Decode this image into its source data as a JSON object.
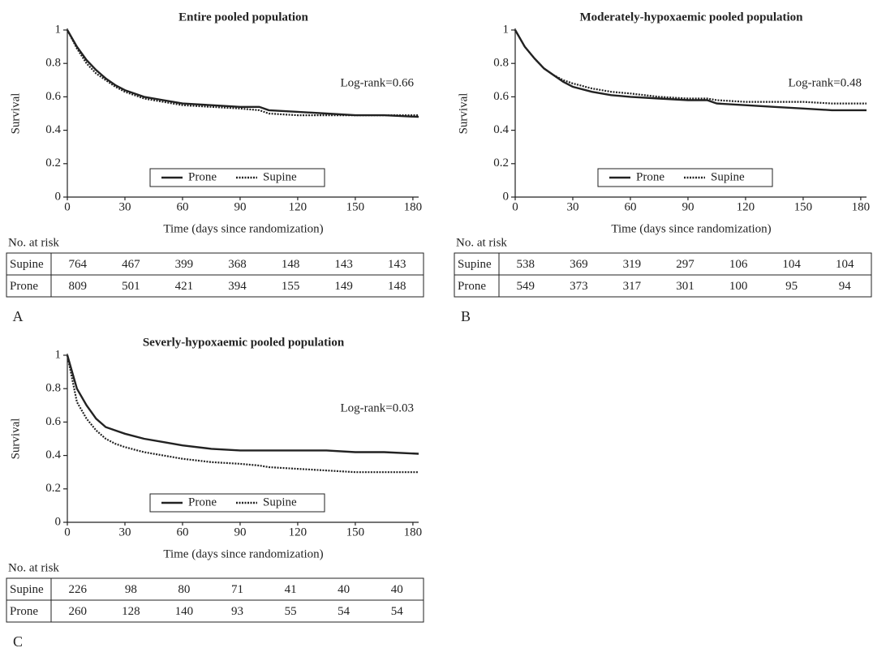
{
  "chart_data": [
    {
      "type": "line",
      "title": "Entire pooled population",
      "annotation": "Log-rank=0.66",
      "xlabel": "Time (days since randomization)",
      "ylabel": "Survival",
      "panel_label": "A",
      "x": [
        0,
        5,
        10,
        15,
        20,
        25,
        30,
        40,
        50,
        60,
        75,
        90,
        100,
        105,
        120,
        135,
        150,
        165,
        183
      ],
      "series": [
        {
          "name": "Prone",
          "color": "#222222",
          "style": "solid",
          "values": [
            1,
            0.9,
            0.82,
            0.76,
            0.71,
            0.67,
            0.64,
            0.6,
            0.58,
            0.56,
            0.55,
            0.54,
            0.54,
            0.52,
            0.51,
            0.5,
            0.49,
            0.49,
            0.48
          ]
        },
        {
          "name": "Supine",
          "color": "#222222",
          "style": "dotted",
          "values": [
            1,
            0.89,
            0.8,
            0.74,
            0.7,
            0.66,
            0.63,
            0.59,
            0.57,
            0.55,
            0.54,
            0.53,
            0.52,
            0.5,
            0.49,
            0.49,
            0.49,
            0.49,
            0.49
          ]
        }
      ],
      "xlim": [
        0,
        183
      ],
      "ylim": [
        0,
        1
      ],
      "xticks": [
        0,
        30,
        60,
        90,
        120,
        150,
        180
      ],
      "yticks": [
        0,
        0.2,
        0.4,
        0.6,
        0.8,
        1
      ],
      "legend": "bottom",
      "risk_table": {
        "title": "No. at risk",
        "rows": [
          {
            "name": "Supine",
            "values": [
              764,
              467,
              399,
              368,
              148,
              143,
              143
            ]
          },
          {
            "name": "Prone",
            "values": [
              809,
              501,
              421,
              394,
              155,
              149,
              148
            ]
          }
        ]
      }
    },
    {
      "type": "line",
      "title": "Moderately-hypoxaemic pooled population",
      "annotation": "Log-rank=0.48",
      "xlabel": "Time (days since randomization)",
      "ylabel": "Survival",
      "panel_label": "B",
      "x": [
        0,
        5,
        10,
        15,
        20,
        25,
        30,
        40,
        50,
        60,
        75,
        90,
        100,
        105,
        120,
        135,
        150,
        165,
        183
      ],
      "series": [
        {
          "name": "Prone",
          "color": "#222222",
          "style": "solid",
          "values": [
            1,
            0.9,
            0.83,
            0.77,
            0.73,
            0.69,
            0.66,
            0.63,
            0.61,
            0.6,
            0.59,
            0.58,
            0.58,
            0.56,
            0.55,
            0.54,
            0.53,
            0.52,
            0.52
          ]
        },
        {
          "name": "Supine",
          "color": "#222222",
          "style": "dotted",
          "values": [
            1,
            0.9,
            0.83,
            0.77,
            0.73,
            0.7,
            0.68,
            0.65,
            0.63,
            0.62,
            0.6,
            0.59,
            0.59,
            0.58,
            0.57,
            0.57,
            0.57,
            0.56,
            0.56
          ]
        }
      ],
      "xlim": [
        0,
        183
      ],
      "ylim": [
        0,
        1
      ],
      "xticks": [
        0,
        30,
        60,
        90,
        120,
        150,
        180
      ],
      "yticks": [
        0,
        0.2,
        0.4,
        0.6,
        0.8,
        1
      ],
      "legend": "bottom",
      "risk_table": {
        "title": "No. at risk",
        "rows": [
          {
            "name": "Supine",
            "values": [
              538,
              369,
              319,
              297,
              106,
              104,
              104
            ]
          },
          {
            "name": "Prone",
            "values": [
              549,
              373,
              317,
              301,
              100,
              95,
              94
            ]
          }
        ]
      }
    },
    {
      "type": "line",
      "title": "Severly-hypoxaemic pooled population",
      "annotation": "Log-rank=0.03",
      "xlabel": "Time (days since randomization)",
      "ylabel": "Survival",
      "panel_label": "C",
      "x": [
        0,
        5,
        10,
        15,
        20,
        25,
        30,
        40,
        50,
        60,
        75,
        90,
        100,
        105,
        120,
        135,
        150,
        165,
        183
      ],
      "series": [
        {
          "name": "Prone",
          "color": "#222222",
          "style": "solid",
          "values": [
            1,
            0.8,
            0.7,
            0.62,
            0.57,
            0.55,
            0.53,
            0.5,
            0.48,
            0.46,
            0.44,
            0.43,
            0.43,
            0.43,
            0.43,
            0.43,
            0.42,
            0.42,
            0.41
          ]
        },
        {
          "name": "Supine",
          "color": "#222222",
          "style": "dotted",
          "values": [
            1,
            0.72,
            0.62,
            0.55,
            0.5,
            0.47,
            0.45,
            0.42,
            0.4,
            0.38,
            0.36,
            0.35,
            0.34,
            0.33,
            0.32,
            0.31,
            0.3,
            0.3,
            0.3
          ]
        }
      ],
      "xlim": [
        0,
        183
      ],
      "ylim": [
        0,
        1
      ],
      "xticks": [
        0,
        30,
        60,
        90,
        120,
        150,
        180
      ],
      "yticks": [
        0,
        0.2,
        0.4,
        0.6,
        0.8,
        1
      ],
      "legend": "bottom",
      "risk_table": {
        "title": "No. at risk",
        "rows": [
          {
            "name": "Supine",
            "values": [
              226,
              98,
              80,
              71,
              41,
              40,
              40
            ]
          },
          {
            "name": "Prone",
            "values": [
              260,
              128,
              140,
              93,
              55,
              54,
              54
            ]
          }
        ]
      }
    }
  ]
}
